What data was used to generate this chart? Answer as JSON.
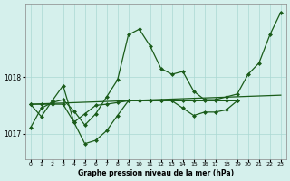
{
  "background_color": "#d5f0ec",
  "grid_color": "#aad8d3",
  "line_color": "#1a5c1a",
  "xlabel": "Graphe pression niveau de la mer (hPa)",
  "xlim": [
    -0.5,
    23.5
  ],
  "ylim": [
    1016.55,
    1019.3
  ],
  "yticks": [
    1017,
    1018
  ],
  "xticks": [
    0,
    1,
    2,
    3,
    4,
    5,
    6,
    7,
    8,
    9,
    10,
    11,
    12,
    13,
    14,
    15,
    16,
    17,
    18,
    19,
    20,
    21,
    22,
    23
  ],
  "series1_x": [
    0,
    1,
    2,
    3,
    4,
    5,
    6,
    7,
    8,
    9,
    10,
    11,
    12,
    13,
    14,
    15,
    16,
    17,
    18,
    19,
    20,
    21,
    22,
    23
  ],
  "series1_y": [
    1017.1,
    1017.45,
    1017.55,
    1017.6,
    1017.4,
    1017.15,
    1017.35,
    1017.65,
    1017.95,
    1018.75,
    1018.85,
    1018.55,
    1018.15,
    1018.05,
    1018.1,
    1017.75,
    1017.6,
    1017.6,
    1017.65,
    1017.7,
    1018.05,
    1018.25,
    1018.75,
    1019.15
  ],
  "series2_x": [
    0,
    23
  ],
  "series2_y": [
    1017.52,
    1017.68
  ],
  "series3_x": [
    0,
    1,
    2,
    3,
    4,
    5,
    6,
    7,
    8,
    9,
    10,
    11,
    12,
    13,
    14,
    15,
    16,
    17,
    18,
    19
  ],
  "series3_y": [
    1017.52,
    1017.52,
    1017.52,
    1017.52,
    1017.2,
    1017.35,
    1017.5,
    1017.52,
    1017.55,
    1017.58,
    1017.58,
    1017.58,
    1017.58,
    1017.58,
    1017.58,
    1017.58,
    1017.58,
    1017.58,
    1017.58,
    1017.58
  ],
  "series4_x": [
    0,
    1,
    2,
    3,
    4,
    5,
    6,
    7,
    8,
    9,
    10,
    11,
    12,
    13,
    14,
    15,
    16,
    17,
    18,
    19
  ],
  "series4_y": [
    1017.52,
    1017.3,
    1017.58,
    1017.85,
    1017.2,
    1016.82,
    1016.88,
    1017.05,
    1017.32,
    1017.58,
    1017.58,
    1017.58,
    1017.58,
    1017.58,
    1017.45,
    1017.32,
    1017.38,
    1017.38,
    1017.42,
    1017.58
  ]
}
